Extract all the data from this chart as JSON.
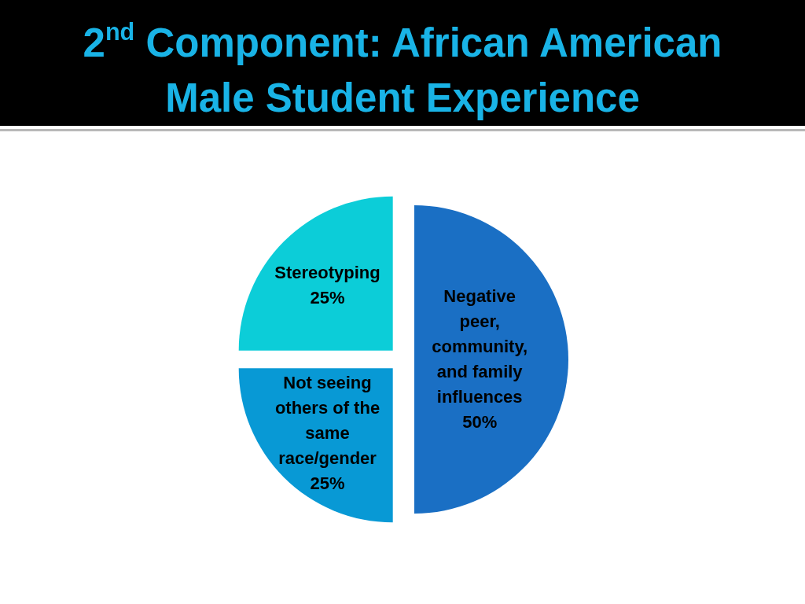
{
  "chart_data": {
    "type": "pie",
    "title": "2$^{nd}$ Component: African American Male Student Experience",
    "categories": [
      "Negative peer, community, and family influences",
      "Not seeing others of the same race/gender",
      "Stereotyping"
    ],
    "values": [
      50,
      25,
      25
    ],
    "value_labels": [
      "50%",
      "25%",
      "25%"
    ],
    "colors": [
      "#1a6fc4",
      "#0899d5",
      "#0ccdd8"
    ]
  }
}
